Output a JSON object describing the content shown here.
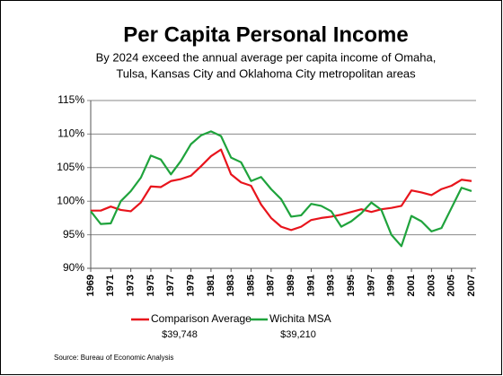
{
  "chart_data": {
    "type": "line",
    "title": "Per Capita Personal Income",
    "subtitle": [
      "By 2024 exceed the annual average per capita income of Omaha,",
      "Tulsa, Kansas City and Oklahoma City metropolitan areas"
    ],
    "source": "Source: Bureau of Economic Analysis",
    "x": [
      1969,
      1970,
      1971,
      1972,
      1973,
      1974,
      1975,
      1976,
      1977,
      1978,
      1979,
      1980,
      1981,
      1982,
      1983,
      1984,
      1985,
      1986,
      1987,
      1988,
      1989,
      1990,
      1991,
      1992,
      1993,
      1994,
      1995,
      1996,
      1997,
      1998,
      1999,
      2000,
      2001,
      2002,
      2003,
      2004,
      2005,
      2006,
      2007
    ],
    "xlim": [
      1969,
      2007
    ],
    "xticks": [
      1969,
      1971,
      1973,
      1975,
      1977,
      1979,
      1981,
      1983,
      1985,
      1987,
      1989,
      1991,
      1993,
      1995,
      1997,
      1999,
      2001,
      2003,
      2005,
      2007
    ],
    "ylim": [
      90,
      115
    ],
    "yticks": [
      {
        "value": 90,
        "label": "90%"
      },
      {
        "value": 95,
        "label": "95%"
      },
      {
        "value": 100,
        "label": "100%"
      },
      {
        "value": 105,
        "label": "105%"
      },
      {
        "value": 110,
        "label": "110%"
      },
      {
        "value": 115,
        "label": "115%"
      }
    ],
    "grid": true,
    "legend": "bottom",
    "series": [
      {
        "name": "Comparison Average",
        "legend_note": "$39,748",
        "color": "#e8141c",
        "values": [
          98.6,
          98.6,
          99.2,
          98.7,
          98.5,
          99.8,
          102.2,
          102.1,
          103.0,
          103.3,
          103.8,
          105.2,
          106.7,
          107.7,
          104.0,
          102.8,
          102.3,
          99.5,
          97.5,
          96.2,
          95.7,
          96.2,
          97.2,
          97.5,
          97.7,
          98.0,
          98.4,
          98.8,
          98.4,
          98.8,
          99.0,
          99.3,
          101.6,
          101.3,
          100.9,
          101.8,
          102.3,
          103.2,
          103.0
        ]
      },
      {
        "name": "Wichita MSA",
        "legend_note": "$39,210",
        "color": "#1fa33c",
        "values": [
          98.5,
          96.6,
          96.7,
          100.0,
          101.5,
          103.5,
          106.8,
          106.2,
          104.0,
          106.0,
          108.5,
          109.8,
          110.4,
          109.7,
          106.5,
          105.8,
          103.0,
          103.6,
          101.8,
          100.3,
          97.7,
          97.9,
          99.6,
          99.3,
          98.5,
          96.2,
          97.0,
          98.2,
          99.8,
          98.7,
          95.0,
          93.3,
          97.8,
          97.0,
          95.5,
          96.0,
          99.0,
          102.0,
          101.5
        ]
      }
    ]
  }
}
